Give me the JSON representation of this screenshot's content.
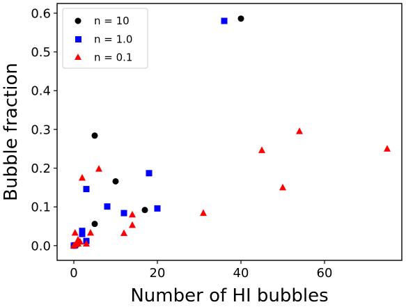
{
  "chart_data": {
    "type": "scatter",
    "title": "",
    "xlabel": "Number of HI bubbles",
    "ylabel": "Bubble fraction",
    "xlim": [
      -4,
      78.5
    ],
    "ylim": [
      -0.038,
      0.625
    ],
    "xticks": [
      0,
      20,
      40,
      60
    ],
    "yticks": [
      0.0,
      0.1,
      0.2,
      0.3,
      0.4,
      0.5,
      0.6
    ],
    "xtick_labels": [
      "0",
      "20",
      "40",
      "60"
    ],
    "ytick_labels": [
      "0.0",
      "0.1",
      "0.2",
      "0.3",
      "0.4",
      "0.5",
      "0.6"
    ],
    "grid": false,
    "legend_position": "top-left",
    "series": [
      {
        "name": "n = 10",
        "marker": "circle",
        "color": "#000000",
        "points": [
          [
            0,
            0.0
          ],
          [
            0.5,
            0.002
          ],
          [
            5,
            0.284
          ],
          [
            5,
            0.056
          ],
          [
            10,
            0.166
          ],
          [
            17,
            0.092
          ],
          [
            40,
            0.586
          ]
        ]
      },
      {
        "name": "n = 1.0",
        "marker": "square",
        "color": "#0000ff",
        "points": [
          [
            0,
            0.0
          ],
          [
            0.3,
            0.001
          ],
          [
            2,
            0.038
          ],
          [
            2,
            0.03
          ],
          [
            3,
            0.012
          ],
          [
            3,
            0.146
          ],
          [
            8,
            0.101
          ],
          [
            12,
            0.084
          ],
          [
            18,
            0.187
          ],
          [
            20,
            0.096
          ],
          [
            36,
            0.58
          ]
        ]
      },
      {
        "name": "n = 0.1",
        "marker": "triangle",
        "color": "#ff0000",
        "points": [
          [
            0,
            0.0
          ],
          [
            0.3,
            0.033
          ],
          [
            0.5,
            0.003
          ],
          [
            1,
            0.015
          ],
          [
            1,
            0.005
          ],
          [
            1.5,
            0.01
          ],
          [
            2,
            0.175
          ],
          [
            3,
            0.005
          ],
          [
            4,
            0.033
          ],
          [
            6,
            0.198
          ],
          [
            12,
            0.032
          ],
          [
            14,
            0.08
          ],
          [
            14,
            0.053
          ],
          [
            31,
            0.084
          ],
          [
            45,
            0.246
          ],
          [
            50,
            0.15
          ],
          [
            54,
            0.295
          ],
          [
            75,
            0.25
          ]
        ]
      }
    ]
  }
}
